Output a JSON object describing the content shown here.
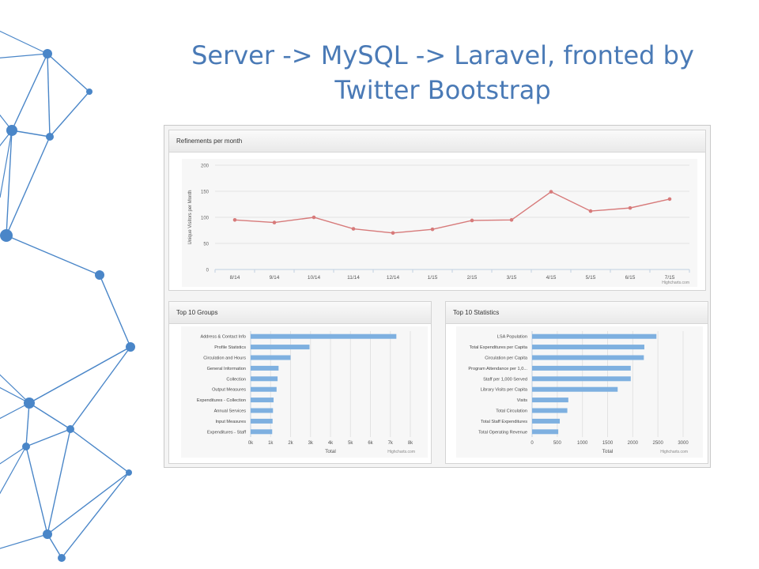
{
  "slide": {
    "title_line1": "Server -> MySQL -> Laravel, fronted by",
    "title_line2": "Twitter Bootstrap"
  },
  "panels": {
    "refinements": "Refinements per month",
    "groups": "Top 10 Groups",
    "statistics": "Top 10 Statistics"
  },
  "colors": {
    "line": "#d77a7a",
    "bar": "#7eb0e0",
    "title": "#4a7ab6",
    "network": "#4a86c8"
  },
  "chart_data": [
    {
      "type": "line",
      "title": "Refinements per month",
      "ylabel": "Unique Visitors per Month",
      "x": [
        "8/14",
        "9/14",
        "10/14",
        "11/14",
        "12/14",
        "1/15",
        "2/15",
        "3/15",
        "4/15",
        "5/15",
        "6/15",
        "7/15"
      ],
      "values": [
        95,
        90,
        100,
        78,
        70,
        77,
        94,
        95,
        149,
        112,
        118,
        135
      ],
      "ylim": [
        0,
        200
      ],
      "yticks": [
        "0",
        "50",
        "100",
        "150",
        "200"
      ],
      "credit": "Highcharts.com"
    },
    {
      "type": "bar",
      "orientation": "horizontal",
      "title": "Top 10 Groups",
      "xlabel": "Total",
      "categories": [
        "Address & Contact Info",
        "Profile Statistics",
        "Circulation and Hours",
        "General Information",
        "Collection",
        "Output Measures",
        "Expenditures - Collection",
        "Annual Services",
        "Input Measures",
        "Expenditures - Staff"
      ],
      "values": [
        7300,
        2950,
        2000,
        1400,
        1350,
        1300,
        1150,
        1120,
        1100,
        1080
      ],
      "xlim": [
        0,
        8000
      ],
      "xticks": [
        "0k",
        "1k",
        "2k",
        "3k",
        "4k",
        "5k",
        "6k",
        "7k",
        "8k"
      ],
      "credit": "Highcharts.com"
    },
    {
      "type": "bar",
      "orientation": "horizontal",
      "title": "Top 10 Statistics",
      "xlabel": "Total",
      "categories": [
        "LSA Population",
        "Total Expenditures per Capita",
        "Circulation per Capita",
        "Program Attendance per 1,0...",
        "Staff per 1,000 Served",
        "Library Visits per Capita",
        "Visits",
        "Total Circulation",
        "Total Staff Expenditures",
        "Total Operating Revenue"
      ],
      "values": [
        2470,
        2230,
        2220,
        1960,
        1960,
        1700,
        720,
        700,
        550,
        520
      ],
      "xlim": [
        0,
        3000
      ],
      "xticks": [
        "0",
        "500",
        "1000",
        "1500",
        "2000",
        "2500",
        "3000"
      ],
      "credit": "Highcharts.com"
    }
  ]
}
